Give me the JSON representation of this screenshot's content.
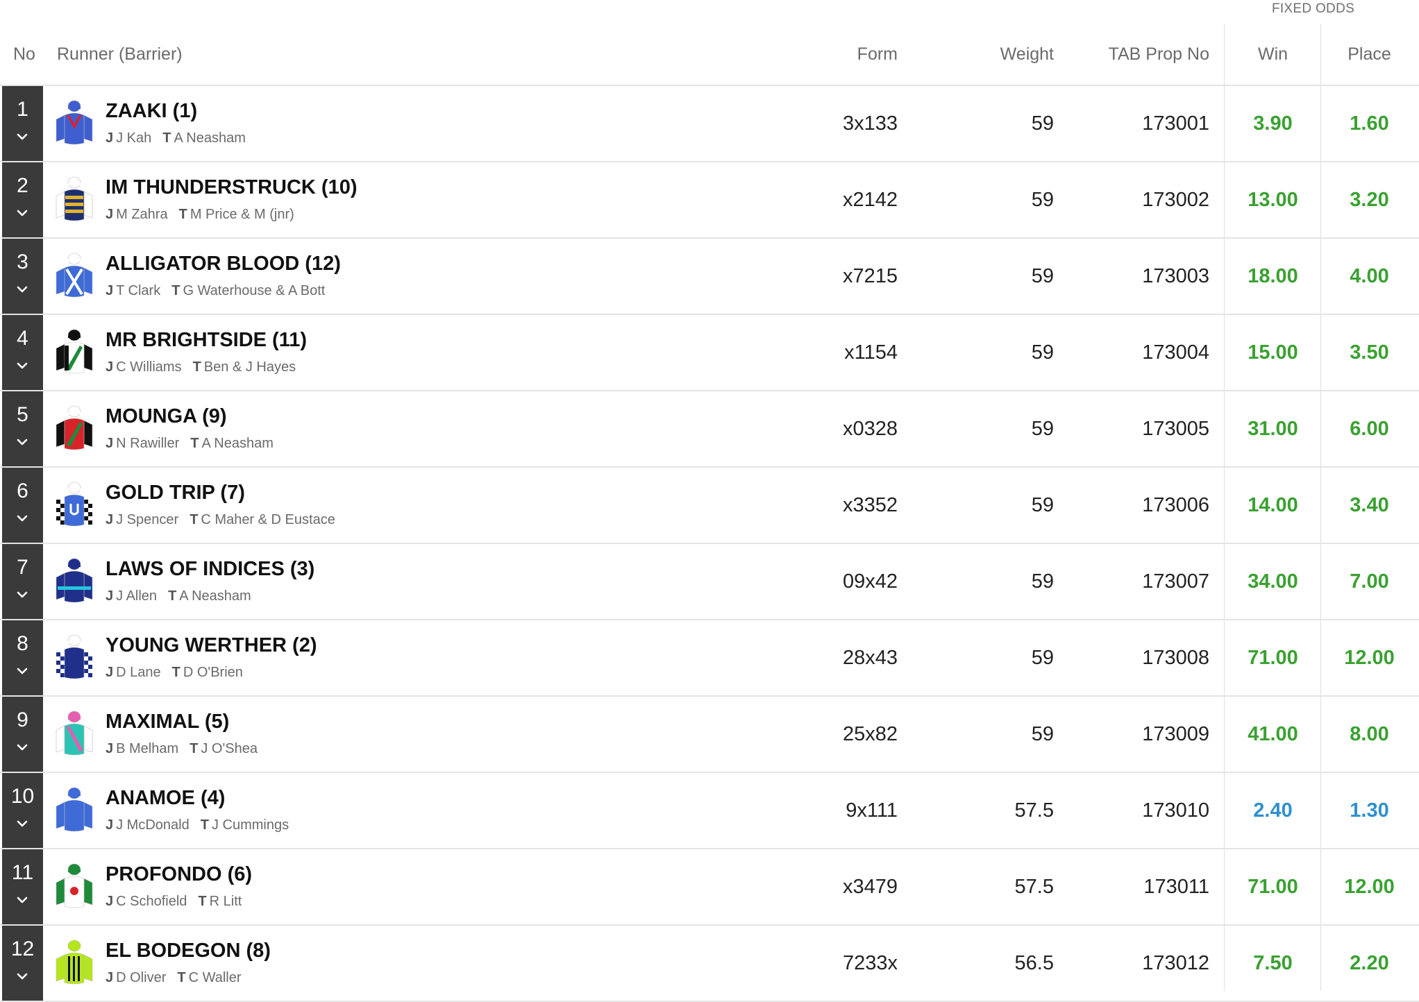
{
  "header": {
    "fixed_odds": "FIXED ODDS",
    "no": "No",
    "runner": "Runner (Barrier)",
    "form": "Form",
    "weight": "Weight",
    "prop": "TAB Prop No",
    "win": "Win",
    "place": "Place"
  },
  "labels": {
    "jockey": "J",
    "trainer": "T"
  },
  "colors": {
    "odds_green": "#3aa131",
    "odds_blue": "#2f8fce",
    "number_box": "#3a3a3a"
  },
  "runners": [
    {
      "no": "1",
      "name": "ZAAKI (1)",
      "jockey": "J Kah",
      "trainer": "A Neasham",
      "form": "3x133",
      "weight": "59",
      "prop": "173001",
      "win": "3.90",
      "place": "1.60",
      "odds_color": "#3aa131",
      "silk": "silk-blue-red-v-icon"
    },
    {
      "no": "2",
      "name": "IM THUNDERSTRUCK (10)",
      "jockey": "M Zahra",
      "trainer": "M Price & M (jnr)",
      "form": "x2142",
      "weight": "59",
      "prop": "173002",
      "win": "13.00",
      "place": "3.20",
      "odds_color": "#3aa131",
      "silk": "silk-navy-gold-hoops-icon"
    },
    {
      "no": "3",
      "name": "ALLIGATOR BLOOD (12)",
      "jockey": "T Clark",
      "trainer": "G Waterhouse & A Bott",
      "form": "x7215",
      "weight": "59",
      "prop": "173003",
      "win": "18.00",
      "place": "4.00",
      "odds_color": "#3aa131",
      "silk": "silk-blue-white-cross-icon"
    },
    {
      "no": "4",
      "name": "MR BRIGHTSIDE (11)",
      "jockey": "C Williams",
      "trainer": "Ben & J Hayes",
      "form": "x1154",
      "weight": "59",
      "prop": "173004",
      "win": "15.00",
      "place": "3.50",
      "odds_color": "#3aa131",
      "silk": "silk-black-green-sash-icon"
    },
    {
      "no": "5",
      "name": "MOUNGA (9)",
      "jockey": "N Rawiller",
      "trainer": "A Neasham",
      "form": "x0328",
      "weight": "59",
      "prop": "173005",
      "win": "31.00",
      "place": "6.00",
      "odds_color": "#3aa131",
      "silk": "silk-black-red-green-sash-icon"
    },
    {
      "no": "6",
      "name": "GOLD TRIP (7)",
      "jockey": "J Spencer",
      "trainer": "C Maher & D Eustace",
      "form": "x3352",
      "weight": "59",
      "prop": "173006",
      "win": "14.00",
      "place": "3.40",
      "odds_color": "#3aa131",
      "silk": "silk-blue-horseshoe-checks-icon"
    },
    {
      "no": "7",
      "name": "LAWS OF INDICES (3)",
      "jockey": "J Allen",
      "trainer": "A Neasham",
      "form": "09x42",
      "weight": "59",
      "prop": "173007",
      "win": "34.00",
      "place": "7.00",
      "odds_color": "#3aa131",
      "silk": "silk-navy-cyan-band-icon"
    },
    {
      "no": "8",
      "name": "YOUNG WERTHER (2)",
      "jockey": "D Lane",
      "trainer": "D O'Brien",
      "form": "28x43",
      "weight": "59",
      "prop": "173008",
      "win": "71.00",
      "place": "12.00",
      "odds_color": "#3aa131",
      "silk": "silk-navy-checked-sleeves-icon"
    },
    {
      "no": "9",
      "name": "MAXIMAL (5)",
      "jockey": "B Melham",
      "trainer": "J O'Shea",
      "form": "25x82",
      "weight": "59",
      "prop": "173009",
      "win": "41.00",
      "place": "8.00",
      "odds_color": "#3aa131",
      "silk": "silk-teal-pink-sash-icon"
    },
    {
      "no": "10",
      "name": "ANAMOE (4)",
      "jockey": "J McDonald",
      "trainer": "J Cummings",
      "form": "9x111",
      "weight": "57.5",
      "prop": "173010",
      "win": "2.40",
      "place": "1.30",
      "odds_color": "#2f8fce",
      "silk": "silk-royal-blue-icon"
    },
    {
      "no": "11",
      "name": "PROFONDO (6)",
      "jockey": "C Schofield",
      "trainer": "R Litt",
      "form": "x3479",
      "weight": "57.5",
      "prop": "173011",
      "win": "71.00",
      "place": "12.00",
      "odds_color": "#3aa131",
      "silk": "silk-white-red-spot-icon"
    },
    {
      "no": "12",
      "name": "EL BODEGON (8)",
      "jockey": "D Oliver",
      "trainer": "C Waller",
      "form": "7233x",
      "weight": "56.5",
      "prop": "173012",
      "win": "7.50",
      "place": "2.20",
      "odds_color": "#3aa131",
      "silk": "silk-lime-black-stripes-icon"
    }
  ]
}
